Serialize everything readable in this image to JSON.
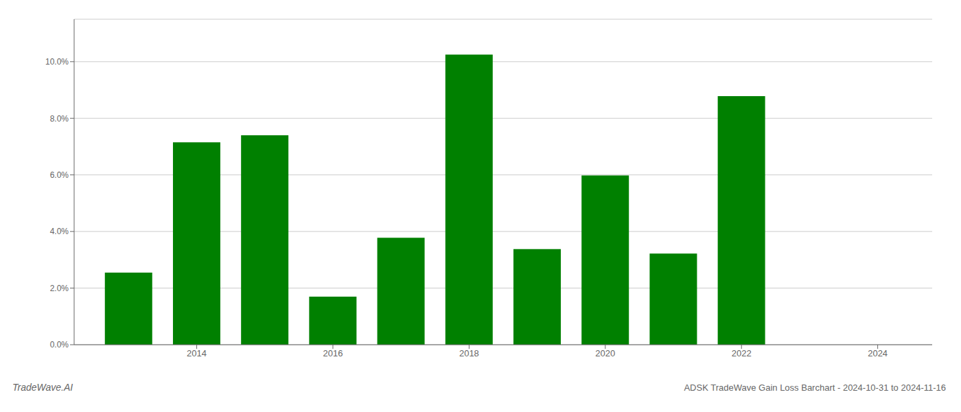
{
  "chart_data": {
    "type": "bar",
    "x": [
      2013,
      2014,
      2015,
      2016,
      2017,
      2018,
      2019,
      2020,
      2021,
      2022,
      2023
    ],
    "values": [
      0.0255,
      0.0715,
      0.074,
      0.017,
      0.0378,
      0.1025,
      0.0338,
      0.0598,
      0.0322,
      0.0878,
      0.0
    ],
    "color": "#008000",
    "xlim": [
      2012.2,
      2024.8
    ],
    "xticks": [
      2014,
      2016,
      2018,
      2020,
      2022,
      2024
    ],
    "ylim": [
      0,
      0.115
    ],
    "yticks": [
      {
        "value": 0.0,
        "label": "0.0%"
      },
      {
        "value": 0.02,
        "label": "2.0%"
      },
      {
        "value": 0.04,
        "label": "4.0%"
      },
      {
        "value": 0.06,
        "label": "6.0%"
      },
      {
        "value": 0.08,
        "label": "8.0%"
      },
      {
        "value": 0.1,
        "label": "10.0%"
      }
    ],
    "grid": true,
    "annotations": [
      "TradeWave.AI",
      "ADSK TradeWave Gain Loss Barchart - 2024-10-31 to 2024-11-16"
    ]
  }
}
